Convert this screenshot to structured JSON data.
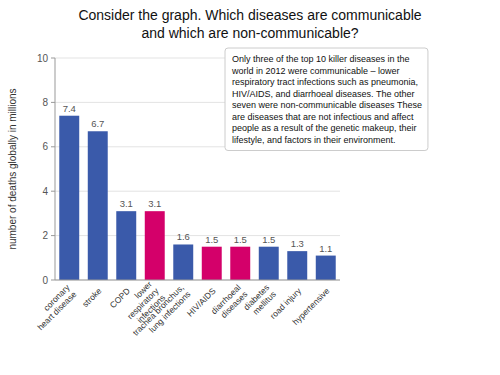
{
  "chart_data": {
    "type": "bar",
    "title": "Consider the graph. Which diseases are communicable\nand which are non-communicable?",
    "categories": [
      "coronary\nheart disease",
      "stroke",
      "COPD",
      "lower\nrespiratory\ninfections",
      "trachea bronchus,\nlung infections",
      "HIV/AIDS",
      "diarrhoeal\ndiseases",
      "diabetes\nmellitus",
      "road injury",
      "hypertensive"
    ],
    "values": [
      7.4,
      6.7,
      3.1,
      3.1,
      1.6,
      1.5,
      1.5,
      1.5,
      1.3,
      1.1
    ],
    "colors": [
      "#3a5aaa",
      "#3a5aaa",
      "#3a5aaa",
      "#d4006a",
      "#3a5aaa",
      "#d4006a",
      "#d4006a",
      "#3a5aaa",
      "#3a5aaa",
      "#3a5aaa"
    ],
    "ylabel": "number of deaths globally in millions",
    "ylim": [
      0,
      10
    ],
    "yticks": [
      0,
      2,
      4,
      6,
      8,
      10
    ],
    "grid": true,
    "data_labels": true,
    "annotation": "Only three of the top 10 killer diseases in the\nworld in 2012 were communicable – lower\nrespiratory tract infections such as pneumonia,\nHIV/AIDS, and diarrhoeal diseases. The other\nseven were non-communicable diseases These\nare diseases that are not infectious and affect\npeople as a result of the genetic makeup, their\nlifestyle, and factors in their environment."
  }
}
